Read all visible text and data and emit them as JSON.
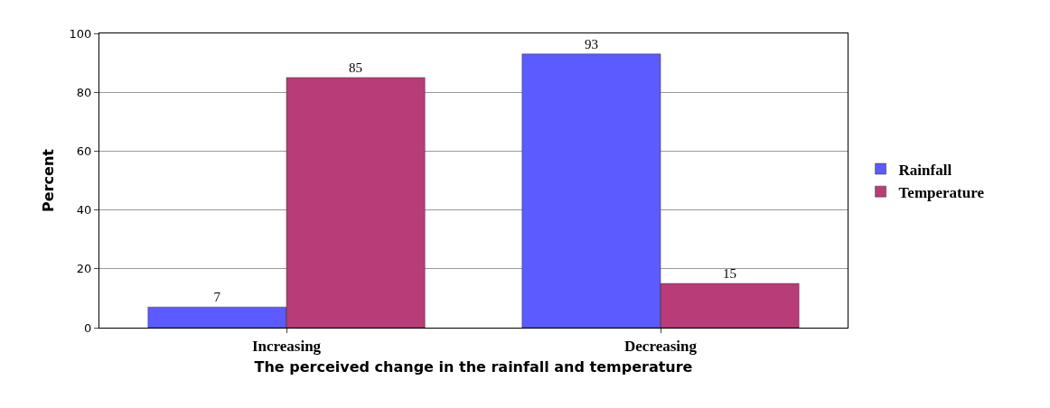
{
  "chart_data": {
    "type": "bar",
    "xlabel": "The perceived change in the rainfall and temperature",
    "ylabel": "Percent",
    "categories": [
      "Increasing",
      "Decreasing"
    ],
    "series": [
      {
        "name": "Rainfall",
        "color": "#5b5bff",
        "values": [
          7,
          93
        ]
      },
      {
        "name": "Temperature",
        "color": "#b83c78",
        "values": [
          85,
          15
        ]
      }
    ],
    "ylim": [
      0,
      100
    ],
    "yticks": [
      0,
      20,
      40,
      60,
      80,
      100
    ],
    "grid": "y",
    "legend": "right",
    "data_labels": true
  }
}
